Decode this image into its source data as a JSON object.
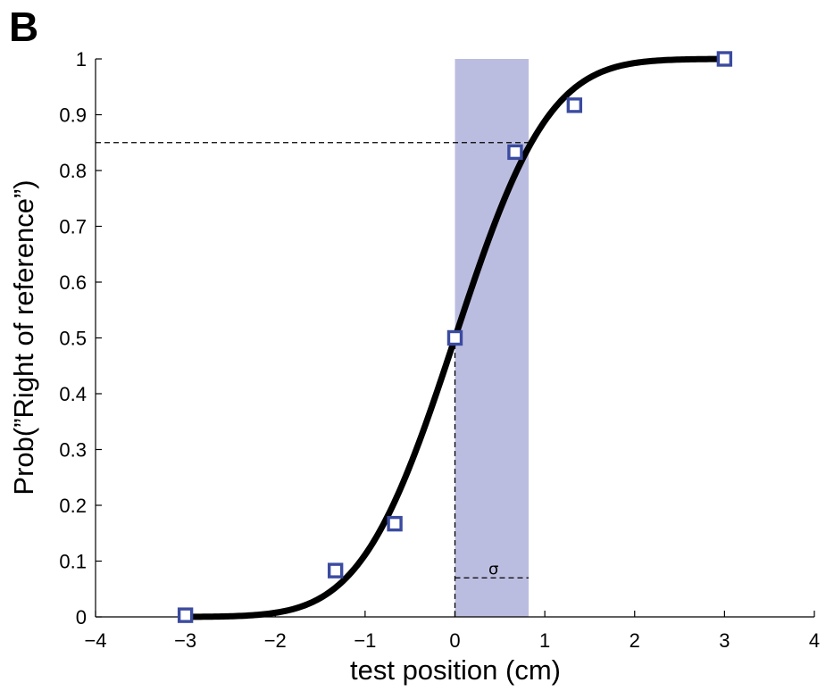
{
  "panel_label": "B",
  "chart_data": {
    "type": "scatter",
    "xlabel": "test position (cm)",
    "ylabel": "Prob(”Right of reference”)",
    "xlim": [
      -4,
      4
    ],
    "ylim": [
      0,
      1
    ],
    "xticks": [
      -4,
      -3,
      -2,
      -1,
      0,
      1,
      2,
      3,
      4
    ],
    "xtick_labels": [
      "−4",
      "−3",
      "−2",
      "−1",
      "0",
      "1",
      "2",
      "3",
      "4"
    ],
    "yticks": [
      0,
      0.1,
      0.2,
      0.3,
      0.4,
      0.5,
      0.6,
      0.7,
      0.8,
      0.9,
      1
    ],
    "ytick_labels": [
      "0",
      "0.1",
      "0.2",
      "0.3",
      "0.4",
      "0.5",
      "0.6",
      "0.7",
      "0.8",
      "0.9",
      "1"
    ],
    "grid": false,
    "series": [
      {
        "type": "scatter",
        "marker": "square-open",
        "color": "#3b4ba0",
        "x": [
          -3,
          -1.33,
          -0.67,
          0,
          0.67,
          1.33,
          3
        ],
        "y": [
          0.003,
          0.083,
          0.167,
          0.5,
          0.833,
          0.917,
          1.0
        ]
      },
      {
        "type": "line",
        "curve": "cumulative-normal",
        "mu": 0,
        "sigma": 0.82,
        "color": "#000000"
      }
    ],
    "shaded_band": {
      "x_from": 0,
      "x_to": 0.82,
      "color": "#bbbde0"
    },
    "reference_lines": [
      {
        "orientation": "horizontal",
        "y": 0.85,
        "x_from": -4,
        "x_to": 0.82,
        "style": "dashed"
      },
      {
        "orientation": "vertical",
        "x": 0,
        "y_from": 0,
        "y_to": 0.5,
        "style": "dashed"
      },
      {
        "orientation": "horizontal",
        "y": 0.07,
        "x_from": 0,
        "x_to": 0.82,
        "style": "dashed"
      }
    ],
    "annotations": [
      {
        "text": "σ",
        "x": 0.43,
        "y": 0.07
      }
    ]
  }
}
